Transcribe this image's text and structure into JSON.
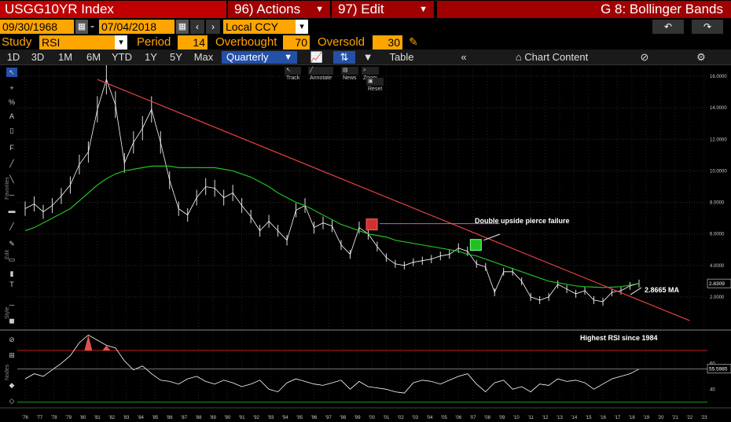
{
  "header": {
    "ticker": "USGG10YR Index",
    "actions_label": "96) Actions",
    "edit_label": "97) Edit",
    "graph_title": "G 8: Bollinger Bands"
  },
  "range": {
    "start_date": "09/30/1968",
    "separator": "-",
    "end_date": "07/04/2018",
    "currency": "Local CCY"
  },
  "study": {
    "study_label": "Study",
    "study_value": "RSI",
    "period_label": "Period",
    "period_value": "14",
    "overbought_label": "Overbought",
    "overbought_value": "70",
    "oversold_label": "Oversold",
    "oversold_value": "30"
  },
  "tabs": {
    "periods": [
      "1D",
      "3D",
      "1M",
      "6M",
      "YTD",
      "1Y",
      "5Y",
      "Max"
    ],
    "frequency": "Quarterly",
    "table_label": "Table",
    "chart_content_label": "Chart Content"
  },
  "mini_toolbar": {
    "track": "Track",
    "annotate": "Annotate",
    "news": "News",
    "zoom": "Zoom",
    "reset": "Reset"
  },
  "side_labels": {
    "favorites": "Favorites",
    "edit": "Edit",
    "style": "Style",
    "nodes": "Nodes"
  },
  "annotations": {
    "pierce_failure": "Double upside pierce failure",
    "ma_label": "2.8665 MA",
    "rsi_note": "Highest RSI since 1984"
  },
  "chart_data": {
    "type": "line",
    "series": [
      {
        "name": "",
        "values": [
          7.6,
          7.9,
          7.4,
          7.8,
          8.4,
          9.1,
          10.4,
          11.2,
          13.9,
          15.8,
          14.2,
          10.5,
          11.8,
          12.7,
          13.9,
          11.8,
          9.4,
          7.6,
          7.2,
          8.3,
          9.0,
          8.9,
          8.3,
          8.6,
          7.8,
          7.1,
          6.2,
          6.8,
          6.2,
          5.6,
          7.5,
          7.8,
          6.4,
          6.7,
          6.5,
          5.3,
          4.7,
          6.4,
          6.0,
          5.2,
          4.5,
          4.1,
          4.0,
          4.2,
          4.3,
          4.4,
          4.6,
          4.7,
          5.1,
          4.9,
          4.1,
          3.9,
          2.3,
          3.6,
          3.6,
          3.0,
          2.0,
          1.8,
          2.0,
          2.8,
          2.5,
          2.2,
          2.4,
          1.8,
          1.7,
          2.3,
          2.4,
          2.7,
          2.85
        ],
        "color": "#ffffff"
      },
      {
        "name": "",
        "values": [
          6.2,
          6.4,
          6.7,
          7.0,
          7.3,
          7.6,
          8.1,
          8.6,
          9.1,
          9.5,
          9.8,
          10.0,
          10.1,
          10.2,
          10.3,
          10.3,
          10.3,
          10.2,
          10.2,
          10.2,
          10.2,
          10.2,
          10.1,
          10.0,
          9.8,
          9.6,
          9.3,
          9.0,
          8.6,
          8.3,
          8.0,
          7.8,
          7.5,
          7.2,
          6.9,
          6.6,
          6.4,
          6.2,
          6.0,
          5.9,
          5.8,
          5.6,
          5.5,
          5.4,
          5.3,
          5.2,
          5.1,
          5.0,
          4.9,
          4.7,
          4.6,
          4.4,
          4.2,
          4.0,
          3.8,
          3.6,
          3.4,
          3.2,
          3.0,
          2.9,
          2.8,
          2.7,
          2.65,
          2.62,
          2.6,
          2.62,
          2.65,
          2.75,
          2.8665
        ],
        "color": "#22c022"
      }
    ],
    "trendline": {
      "from": [
        "1981",
        15.8
      ],
      "to": [
        "2022",
        0.5
      ],
      "color": "#e04040"
    },
    "x_ticks": [
      "'76",
      "'77",
      "'78",
      "'79",
      "'80",
      "'81",
      "'82",
      "'83",
      "'84",
      "'85",
      "'86",
      "'87",
      "'88",
      "'89",
      "'90",
      "'91",
      "'92",
      "'93",
      "'94",
      "'95",
      "'96",
      "'97",
      "'98",
      "'99",
      "'00",
      "'01",
      "'02",
      "'03",
      "'04",
      "'05",
      "'06",
      "'07",
      "'08",
      "'09",
      "'10",
      "'11",
      "'12",
      "'13",
      "'14",
      "'15",
      "'16",
      "'17",
      "'18",
      "'19",
      "'20",
      "'21",
      "'22",
      "'23"
    ],
    "y_ticks": [
      "16.0000",
      "14.0000",
      "12.0000",
      "10.0000",
      "8.0000",
      "6.0000",
      "4.0000",
      "2.0000"
    ],
    "ylim": [
      0,
      16.5
    ],
    "last_value": "2.8309",
    "rsi": {
      "values": [
        48,
        52,
        50,
        55,
        60,
        66,
        76,
        82,
        78,
        74,
        72,
        62,
        55,
        58,
        52,
        47,
        46,
        44,
        48,
        50,
        46,
        44,
        47,
        45,
        42,
        44,
        47,
        40,
        38,
        45,
        48,
        46,
        44,
        43,
        45,
        47,
        40,
        46,
        42,
        41,
        40,
        38,
        37,
        45,
        47,
        46,
        44,
        47,
        50,
        52,
        44,
        38,
        45,
        47,
        40,
        42,
        38,
        44,
        43,
        48,
        46,
        47,
        45,
        40,
        44,
        48,
        50,
        52,
        55.6
      ],
      "levels": [
        "60",
        "40"
      ],
      "last_value": "55.5985",
      "overbought": 70,
      "oversold": 30,
      "ylim": [
        28,
        84
      ]
    },
    "grid": true
  },
  "colors": {
    "red_header": "#c00000",
    "orange": "#ffa500",
    "active_tab": "#2450a8",
    "ma_green": "#22c022",
    "trend_red": "#e04040",
    "marker_red": "#d03030",
    "marker_green": "#22c022"
  }
}
